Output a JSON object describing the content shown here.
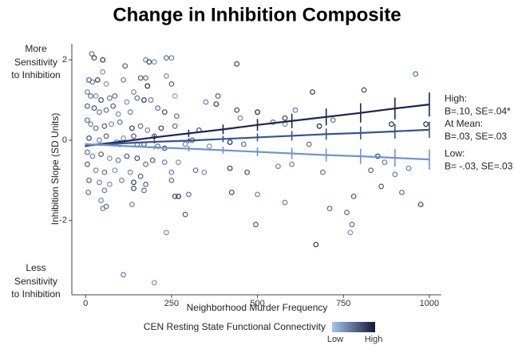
{
  "chart_data": {
    "type": "scatter",
    "title": "Change in Inhibition Composite",
    "x_label": "Neighborhood Murder Frequency",
    "y_label": "Inhibition Slope (SD Units)",
    "annotations": [
      [
        "More",
        "Sensitivity",
        "to Inhibition"
      ],
      [
        "Less",
        "Sensitivity",
        "to Inhibition"
      ]
    ],
    "xlim": [
      -40,
      1035
    ],
    "ylim": [
      -3.85,
      2.4
    ],
    "xticks": [
      0,
      250,
      500,
      750,
      1000
    ],
    "yticks": [
      -2,
      0,
      2
    ],
    "colorbar": {
      "title": "CEN Resting State Functional Connectivity",
      "low": "Low",
      "high": "High",
      "colors": [
        "#a6c3f2",
        "#141838"
      ]
    },
    "x": [
      18,
      25,
      50,
      115,
      175,
      185,
      200,
      235,
      250,
      440,
      960,
      50,
      10,
      20,
      35,
      60,
      110,
      160,
      175,
      235,
      250,
      180,
      140,
      5,
      15,
      30,
      45,
      70,
      85,
      120,
      150,
      170,
      190,
      260,
      210,
      5,
      25,
      40,
      60,
      80,
      95,
      130,
      230,
      265,
      350,
      380,
      385,
      440,
      450,
      500,
      580,
      610,
      660,
      720,
      810,
      990,
      890,
      680,
      545,
      580,
      5,
      15,
      30,
      55,
      75,
      100,
      135,
      160,
      180,
      200,
      220,
      260,
      330,
      10,
      40,
      60,
      90,
      110,
      140,
      150,
      170,
      210,
      230,
      290,
      310,
      360,
      420,
      460,
      650,
      850,
      870,
      5,
      20,
      45,
      70,
      95,
      120,
      150,
      175,
      195,
      230,
      270,
      5,
      30,
      55,
      85,
      130,
      160,
      250,
      320,
      345,
      420,
      470,
      560,
      600,
      690,
      830,
      900,
      940,
      10,
      40,
      70,
      105,
      140,
      175,
      250,
      8,
      55,
      140,
      170,
      270,
      300,
      425,
      500,
      860,
      920,
      780,
      45,
      50,
      60,
      135,
      260,
      290,
      710,
      580,
      975,
      495,
      775,
      770,
      235,
      670,
      110,
      200,
      760
    ],
    "values": [
      2.15,
      2.05,
      2.0,
      1.85,
      2.0,
      1.95,
      1.95,
      2.05,
      2.05,
      1.9,
      1.65,
      1.7,
      1.5,
      1.45,
      1.5,
      1.4,
      1.5,
      1.55,
      1.55,
      1.6,
      1.4,
      1.35,
      1.2,
      1.2,
      1.1,
      1.1,
      1.0,
      1.05,
      1.1,
      0.95,
      1.05,
      1.0,
      1.0,
      1.1,
      0.8,
      0.85,
      0.8,
      0.7,
      0.75,
      0.85,
      0.65,
      0.7,
      0.7,
      0.6,
      0.95,
      0.9,
      1.1,
      0.75,
      0.55,
      0.7,
      0.55,
      0.75,
      1.2,
      0.5,
      1.25,
      0.4,
      0.4,
      0.35,
      0.45,
      0.4,
      0.5,
      0.4,
      0.3,
      0.35,
      0.4,
      0.45,
      0.3,
      0.35,
      0.25,
      0.1,
      0.3,
      0.35,
      0.25,
      0.05,
      0.0,
      0.1,
      -0.05,
      0.05,
      0.1,
      -0.1,
      -0.1,
      -0.15,
      -0.2,
      -0.1,
      0.0,
      -0.15,
      -0.05,
      -0.1,
      -0.1,
      -0.4,
      -0.55,
      -0.3,
      -0.4,
      -0.35,
      -0.45,
      -0.5,
      -0.4,
      -0.45,
      -0.6,
      -0.5,
      -0.55,
      -0.55,
      -0.6,
      -0.75,
      -0.8,
      -0.75,
      -0.8,
      -0.9,
      -0.8,
      -0.75,
      -0.8,
      -0.7,
      -0.8,
      -0.65,
      -0.6,
      -0.8,
      -0.75,
      -0.85,
      -0.7,
      -1.0,
      -1.05,
      -1.1,
      -1.0,
      -1.05,
      -1.1,
      -1.0,
      -1.3,
      -1.25,
      -1.2,
      -1.25,
      -1.4,
      -1.35,
      -1.3,
      -1.35,
      -1.15,
      -1.3,
      -1.4,
      -1.5,
      -1.7,
      -1.65,
      -1.6,
      -1.4,
      -1.85,
      -1.7,
      -1.55,
      -1.6,
      -2.1,
      -2.1,
      -2.3,
      -2.3,
      -2.6,
      -3.35,
      -3.55,
      -1.8
    ],
    "z": [
      0.5,
      0.7,
      0.8,
      0.6,
      0.4,
      0.7,
      0.3,
      0.5,
      0.4,
      0.7,
      0.5,
      0.3,
      0.6,
      0.5,
      0.8,
      0.3,
      0.4,
      0.6,
      0.5,
      0.3,
      0.6,
      0.9,
      0.4,
      0.4,
      0.5,
      0.3,
      0.7,
      0.4,
      0.5,
      0.3,
      0.5,
      0.8,
      0.4,
      0.2,
      0.5,
      0.6,
      0.7,
      0.4,
      0.5,
      0.6,
      0.3,
      0.4,
      0.7,
      0.5,
      0.4,
      0.8,
      0.6,
      0.7,
      0.4,
      0.9,
      0.8,
      0.4,
      0.8,
      0.5,
      0.7,
      0.9,
      0.9,
      0.9,
      0.5,
      0.3,
      0.5,
      0.4,
      0.5,
      0.6,
      0.3,
      0.5,
      0.8,
      0.5,
      0.4,
      0.6,
      0.8,
      0.5,
      0.7,
      0.7,
      0.4,
      0.6,
      0.5,
      0.3,
      0.6,
      0.5,
      0.6,
      0.5,
      0.7,
      0.4,
      0.6,
      0.3,
      0.9,
      0.5,
      0.5,
      0.8,
      0.4,
      0.5,
      0.4,
      0.6,
      0.3,
      0.4,
      0.6,
      0.7,
      0.5,
      0.6,
      0.4,
      0.3,
      0.6,
      0.4,
      0.5,
      0.3,
      0.4,
      0.6,
      0.4,
      0.5,
      0.3,
      0.8,
      0.7,
      0.4,
      0.4,
      0.5,
      0.6,
      0.4,
      0.4,
      0.6,
      0.4,
      0.3,
      0.4,
      0.8,
      0.6,
      0.5,
      0.5,
      0.4,
      0.7,
      0.5,
      0.9,
      0.5,
      0.7,
      0.4,
      0.6,
      0.5,
      0.6,
      0.4,
      0.4,
      0.5,
      0.4,
      0.7,
      0.6,
      0.5,
      0.4,
      0.7,
      0.6,
      0.5,
      0.3,
      0.3,
      0.8,
      0.4,
      0.3,
      0.5
    ],
    "fits": [
      {
        "type": "line",
        "name": "High:",
        "stat": "B=.10, SE=.04*",
        "color": "#1e2650",
        "x": [
          0,
          100,
          200,
          300,
          400,
          500,
          600,
          700,
          800,
          900,
          1000
        ],
        "values": [
          -0.14,
          -0.04,
          0.07,
          0.17,
          0.27,
          0.38,
          0.48,
          0.58,
          0.68,
          0.79,
          0.89
        ],
        "errors": [
          0.03,
          0.04,
          0.06,
          0.09,
          0.12,
          0.15,
          0.18,
          0.21,
          0.24,
          0.27,
          0.3
        ]
      },
      {
        "type": "line",
        "name": "At Mean:",
        "stat": "B=.03, SE=.03",
        "color": "#35548f",
        "x": [
          0,
          100,
          200,
          300,
          400,
          500,
          600,
          700,
          800,
          900,
          1000
        ],
        "values": [
          -0.12,
          -0.08,
          -0.04,
          -0.01,
          0.03,
          0.07,
          0.11,
          0.15,
          0.18,
          0.22,
          0.26
        ],
        "errors": [
          0.02,
          0.03,
          0.04,
          0.06,
          0.08,
          0.1,
          0.12,
          0.14,
          0.16,
          0.18,
          0.2
        ]
      },
      {
        "type": "line",
        "name": "Low:",
        "stat": "B= -.03, SE=.03",
        "color": "#6d93d4",
        "x": [
          0,
          100,
          200,
          300,
          400,
          500,
          600,
          700,
          800,
          900,
          1000
        ],
        "values": [
          -0.1,
          -0.14,
          -0.18,
          -0.21,
          -0.25,
          -0.29,
          -0.33,
          -0.37,
          -0.4,
          -0.44,
          -0.48
        ],
        "errors": [
          0.03,
          0.04,
          0.05,
          0.07,
          0.09,
          0.11,
          0.14,
          0.16,
          0.19,
          0.22,
          0.25
        ]
      }
    ]
  }
}
